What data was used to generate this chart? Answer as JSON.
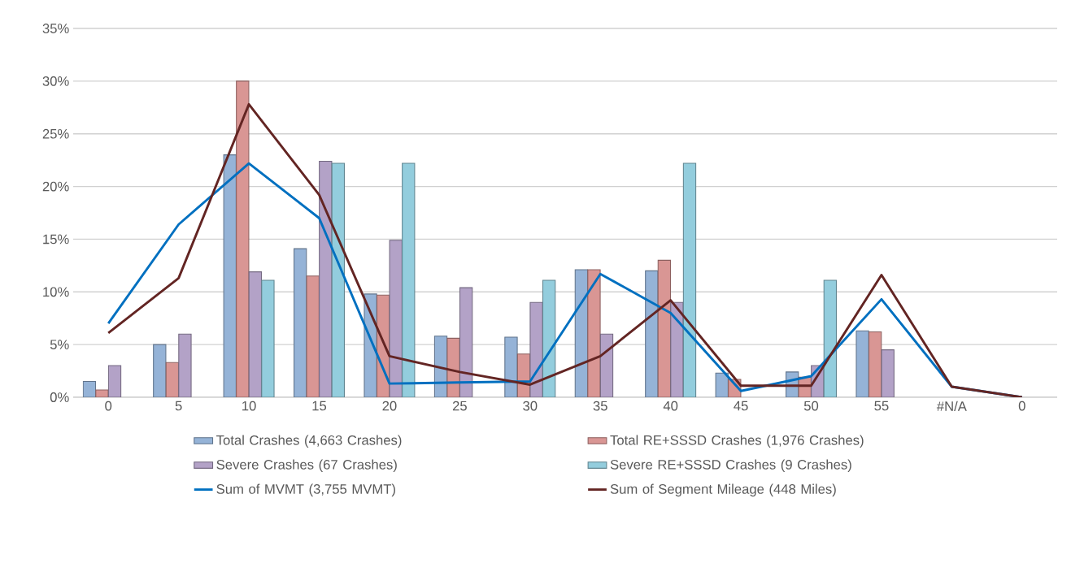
{
  "chart_data": {
    "type": "bar",
    "categories": [
      "0",
      "5",
      "10",
      "15",
      "20",
      "25",
      "30",
      "35",
      "40",
      "45",
      "50",
      "55",
      "#N/A",
      "0"
    ],
    "series": [
      {
        "name": "Total Crashes (4,663 Crashes)",
        "color": "#95b3d7",
        "values": [
          1.5,
          5.0,
          23.0,
          14.1,
          9.8,
          5.8,
          5.7,
          12.1,
          12.0,
          2.3,
          2.4,
          6.3,
          null,
          null
        ]
      },
      {
        "name": "Total RE+SSSD Crashes (1,976 Crashes)",
        "color": "#d99694",
        "values": [
          0.7,
          3.3,
          30.0,
          11.5,
          9.7,
          5.6,
          4.1,
          12.1,
          13.0,
          1.7,
          1.9,
          6.2,
          null,
          null
        ]
      },
      {
        "name": "Severe Crashes (67 Crashes)",
        "color": "#b3a2c7",
        "values": [
          3.0,
          6.0,
          11.9,
          22.4,
          14.9,
          10.4,
          9.0,
          6.0,
          9.0,
          null,
          3.0,
          4.5,
          null,
          null
        ]
      },
      {
        "name": "Severe RE+SSSD Crashes (9 Crashes)",
        "color": "#93cddd",
        "values": [
          null,
          null,
          11.1,
          22.2,
          22.2,
          null,
          11.1,
          null,
          22.2,
          null,
          11.1,
          null,
          null,
          null
        ]
      },
      {
        "name": "Sum of MVMT (3,755 MVMT)",
        "type": "line",
        "color": "#0070c0",
        "values": [
          7.0,
          16.4,
          22.2,
          17.0,
          1.3,
          1.4,
          1.5,
          11.7,
          8.0,
          0.6,
          2.0,
          9.3,
          1.0,
          0
        ]
      },
      {
        "name": "Sum of Segment Mileage (448 Miles)",
        "type": "line",
        "color": "#632523",
        "values": [
          6.1,
          11.3,
          27.8,
          19.2,
          3.9,
          2.4,
          1.2,
          3.9,
          9.2,
          1.1,
          1.1,
          11.6,
          1.0,
          0
        ]
      }
    ],
    "ylim": [
      0,
      35
    ],
    "yticks": [
      {
        "value": 0,
        "label": "0%"
      },
      {
        "value": 5,
        "label": "5%"
      },
      {
        "value": 10,
        "label": "10%"
      },
      {
        "value": 15,
        "label": "15%"
      },
      {
        "value": 20,
        "label": "20%"
      },
      {
        "value": 25,
        "label": "25%"
      },
      {
        "value": 30,
        "label": "30%"
      },
      {
        "value": 35,
        "label": "35%"
      }
    ],
    "grid": "y",
    "legend": "bottom"
  }
}
